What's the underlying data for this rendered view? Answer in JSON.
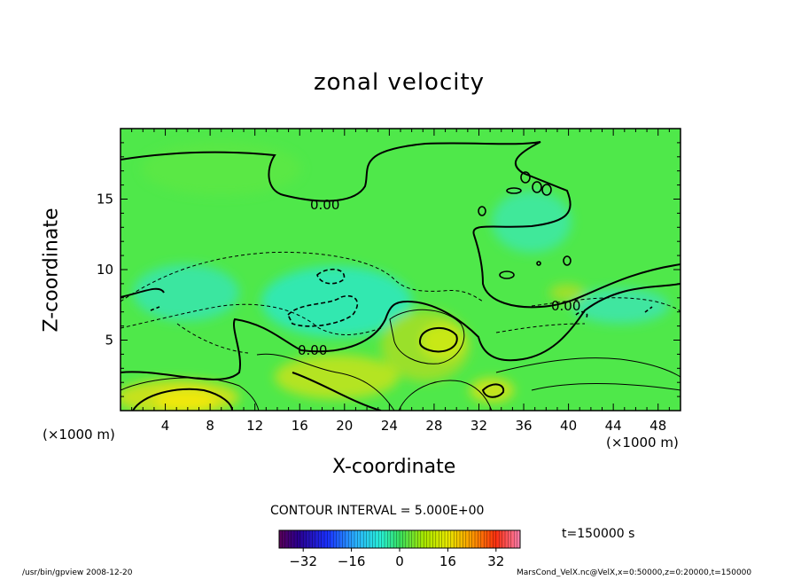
{
  "chart_data": {
    "type": "heatmap",
    "title": "zonal velocity",
    "xlabel": "X-coordinate",
    "ylabel": "Z-coordinate",
    "x_unit": "(×1000 m)",
    "y_unit": "(×1000 m)",
    "xlim": [
      0,
      50
    ],
    "ylim": [
      0,
      20
    ],
    "x_ticks": [
      4,
      8,
      12,
      16,
      20,
      24,
      28,
      32,
      36,
      40,
      44,
      48
    ],
    "y_ticks": [
      5,
      10,
      15
    ],
    "contour_interval_text": "CONTOUR INTERVAL = 5.000E+00",
    "contour_labels": [
      "0.00",
      "0.00",
      "0.00"
    ],
    "colorbar": {
      "range": [
        -40,
        40
      ],
      "ticks": [
        -32,
        -16,
        0,
        16,
        32
      ]
    },
    "colormap": "rainbow",
    "time_label": "t=150000 s",
    "footer_left": "/usr/bin/gpview   2008-12-20",
    "footer_right": "MarsCond_VelX.nc@VelX,x=0:50000,z=0:20000,t=150000",
    "grid": false
  }
}
